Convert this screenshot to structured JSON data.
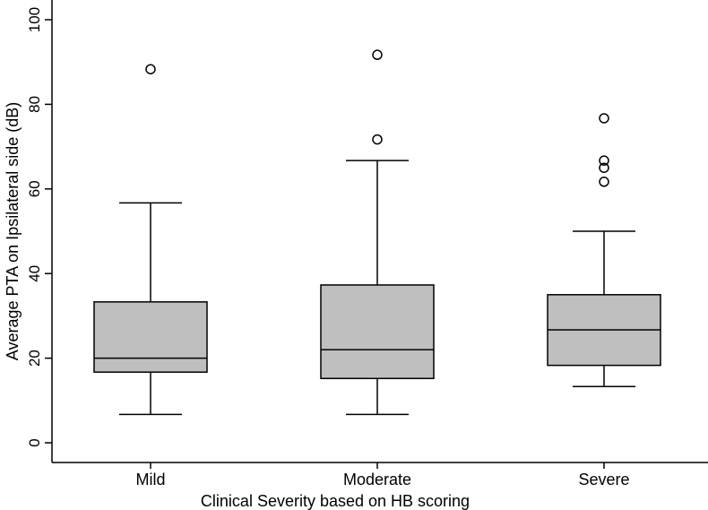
{
  "chart_data": {
    "type": "boxplot",
    "title": "",
    "xlabel": "Clinical Severity based on HB scoring",
    "ylabel": "Average PTA on Ipsilateral side (dB)",
    "ylim": [
      0,
      100
    ],
    "yticks": [
      0,
      20,
      40,
      60,
      80,
      100
    ],
    "grid": false,
    "legend": "none",
    "box_color": "#bfbfbf",
    "line_color": "#000000",
    "groups": [
      {
        "name": "Mild",
        "whisker_low": 6.7,
        "q1": 16.7,
        "median": 20.0,
        "q3": 33.3,
        "whisker_high": 56.7,
        "outliers": [
          88.3
        ]
      },
      {
        "name": "Moderate",
        "whisker_low": 6.7,
        "q1": 15.2,
        "median": 22.0,
        "q3": 37.3,
        "whisker_high": 66.7,
        "outliers": [
          71.7,
          91.7
        ]
      },
      {
        "name": "Severe",
        "whisker_low": 13.3,
        "q1": 18.3,
        "median": 26.7,
        "q3": 35.0,
        "whisker_high": 50.0,
        "outliers": [
          61.7,
          65.0,
          66.7,
          76.7
        ]
      }
    ]
  }
}
